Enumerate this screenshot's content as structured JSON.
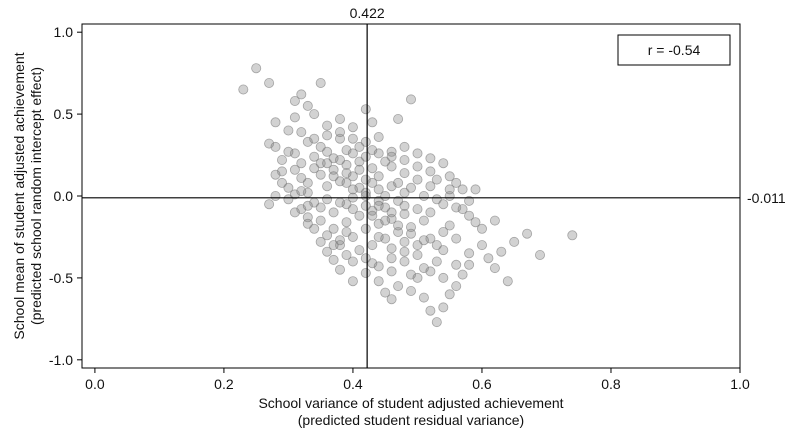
{
  "chart_data": {
    "type": "scatter",
    "xlabel_line1": "School variance of student adjusted achievement",
    "xlabel_line2": "(predicted student residual variance)",
    "ylabel_line1": "School mean of student adjusted achievement",
    "ylabel_line2": "(predicted school random intercept effect)",
    "xlim": [
      -0.02,
      1.0
    ],
    "ylim": [
      -1.05,
      1.05
    ],
    "xticks": [
      0.0,
      0.2,
      0.4,
      0.6,
      0.8,
      1.0
    ],
    "xtick_labels": [
      "0.0",
      "0.2",
      "0.4",
      "0.6",
      "0.8",
      "1.0"
    ],
    "yticks": [
      -1.0,
      -0.5,
      0.0,
      0.5,
      1.0
    ],
    "ytick_labels": [
      "-1.0",
      "-0.5",
      "0.0",
      "0.5",
      "1.0"
    ],
    "grid": false,
    "reference_lines": {
      "vertical": {
        "x": 0.422,
        "label": "0.422"
      },
      "horizontal": {
        "y": -0.011,
        "label": "-0.011"
      }
    },
    "annotation": "r = -0.54",
    "point_color": "#8a8a8a",
    "points": [
      [
        0.23,
        0.65
      ],
      [
        0.25,
        0.78
      ],
      [
        0.27,
        0.69
      ],
      [
        0.28,
        0.45
      ],
      [
        0.27,
        0.32
      ],
      [
        0.28,
        0.3
      ],
      [
        0.29,
        0.15
      ],
      [
        0.28,
        0.13
      ],
      [
        0.31,
        0.58
      ],
      [
        0.32,
        0.62
      ],
      [
        0.33,
        0.55
      ],
      [
        0.35,
        0.69
      ],
      [
        0.34,
        0.5
      ],
      [
        0.31,
        0.48
      ],
      [
        0.3,
        0.4
      ],
      [
        0.32,
        0.39
      ],
      [
        0.33,
        0.33
      ],
      [
        0.36,
        0.43
      ],
      [
        0.38,
        0.47
      ],
      [
        0.4,
        0.42
      ],
      [
        0.42,
        0.53
      ],
      [
        0.43,
        0.45
      ],
      [
        0.47,
        0.47
      ],
      [
        0.49,
        0.59
      ],
      [
        0.44,
        0.36
      ],
      [
        0.38,
        0.35
      ],
      [
        0.35,
        0.3
      ],
      [
        0.31,
        0.26
      ],
      [
        0.32,
        0.2
      ],
      [
        0.34,
        0.24
      ],
      [
        0.36,
        0.27
      ],
      [
        0.39,
        0.28
      ],
      [
        0.41,
        0.3
      ],
      [
        0.43,
        0.28
      ],
      [
        0.46,
        0.27
      ],
      [
        0.48,
        0.3
      ],
      [
        0.5,
        0.26
      ],
      [
        0.52,
        0.23
      ],
      [
        0.54,
        0.2
      ],
      [
        0.52,
        0.15
      ],
      [
        0.55,
        0.12
      ],
      [
        0.56,
        0.08
      ],
      [
        0.57,
        0.04
      ],
      [
        0.59,
        0.04
      ],
      [
        0.55,
        0.0
      ],
      [
        0.53,
        -0.02
      ],
      [
        0.58,
        -0.03
      ],
      [
        0.5,
        0.1
      ],
      [
        0.48,
        0.14
      ],
      [
        0.46,
        0.18
      ],
      [
        0.45,
        0.21
      ],
      [
        0.43,
        0.17
      ],
      [
        0.41,
        0.21
      ],
      [
        0.39,
        0.19
      ],
      [
        0.37,
        0.16
      ],
      [
        0.35,
        0.13
      ],
      [
        0.33,
        0.08
      ],
      [
        0.32,
        0.11
      ],
      [
        0.3,
        0.05
      ],
      [
        0.31,
        0.01
      ],
      [
        0.33,
        0.02
      ],
      [
        0.34,
        -0.04
      ],
      [
        0.32,
        -0.08
      ],
      [
        0.33,
        -0.13
      ],
      [
        0.35,
        -0.15
      ],
      [
        0.37,
        -0.1
      ],
      [
        0.39,
        -0.05
      ],
      [
        0.4,
        -0.01
      ],
      [
        0.42,
        0.02
      ],
      [
        0.44,
        0.04
      ],
      [
        0.46,
        0.06
      ],
      [
        0.48,
        0.02
      ],
      [
        0.47,
        -0.03
      ],
      [
        0.45,
        -0.07
      ],
      [
        0.43,
        -0.09
      ],
      [
        0.41,
        -0.12
      ],
      [
        0.39,
        -0.16
      ],
      [
        0.37,
        -0.2
      ],
      [
        0.36,
        -0.24
      ],
      [
        0.38,
        -0.27
      ],
      [
        0.4,
        -0.25
      ],
      [
        0.42,
        -0.2
      ],
      [
        0.44,
        -0.17
      ],
      [
        0.46,
        -0.14
      ],
      [
        0.48,
        -0.11
      ],
      [
        0.5,
        -0.08
      ],
      [
        0.52,
        -0.1
      ],
      [
        0.51,
        -0.15
      ],
      [
        0.49,
        -0.19
      ],
      [
        0.47,
        -0.22
      ],
      [
        0.45,
        -0.26
      ],
      [
        0.43,
        -0.3
      ],
      [
        0.41,
        -0.33
      ],
      [
        0.39,
        -0.36
      ],
      [
        0.37,
        -0.39
      ],
      [
        0.38,
        -0.45
      ],
      [
        0.4,
        -0.52
      ],
      [
        0.42,
        -0.47
      ],
      [
        0.44,
        -0.43
      ],
      [
        0.46,
        -0.38
      ],
      [
        0.48,
        -0.34
      ],
      [
        0.5,
        -0.3
      ],
      [
        0.52,
        -0.26
      ],
      [
        0.54,
        -0.22
      ],
      [
        0.55,
        -0.18
      ],
      [
        0.56,
        -0.26
      ],
      [
        0.54,
        -0.33
      ],
      [
        0.53,
        -0.4
      ],
      [
        0.51,
        -0.44
      ],
      [
        0.49,
        -0.48
      ],
      [
        0.47,
        -0.55
      ],
      [
        0.45,
        -0.59
      ],
      [
        0.46,
        -0.63
      ],
      [
        0.49,
        -0.58
      ],
      [
        0.51,
        -0.62
      ],
      [
        0.52,
        -0.7
      ],
      [
        0.53,
        -0.77
      ],
      [
        0.54,
        -0.68
      ],
      [
        0.55,
        -0.6
      ],
      [
        0.56,
        -0.55
      ],
      [
        0.57,
        -0.48
      ],
      [
        0.58,
        -0.42
      ],
      [
        0.6,
        -0.3
      ],
      [
        0.61,
        -0.38
      ],
      [
        0.62,
        -0.44
      ],
      [
        0.64,
        -0.52
      ],
      [
        0.63,
        -0.34
      ],
      [
        0.65,
        -0.28
      ],
      [
        0.67,
        -0.23
      ],
      [
        0.69,
        -0.36
      ],
      [
        0.74,
        -0.24
      ],
      [
        0.36,
        0.06
      ],
      [
        0.38,
        0.09
      ],
      [
        0.4,
        0.12
      ],
      [
        0.42,
        0.1
      ],
      [
        0.44,
        0.12
      ],
      [
        0.36,
        -0.02
      ],
      [
        0.38,
        -0.04
      ],
      [
        0.4,
        -0.08
      ],
      [
        0.42,
        -0.06
      ],
      [
        0.44,
        -0.03
      ],
      [
        0.35,
        0.2
      ],
      [
        0.37,
        0.23
      ],
      [
        0.39,
        0.08
      ],
      [
        0.41,
        0.05
      ],
      [
        0.43,
        -0.12
      ],
      [
        0.45,
        -0.15
      ],
      [
        0.47,
        -0.18
      ],
      [
        0.49,
        -0.23
      ],
      [
        0.51,
        -0.27
      ],
      [
        0.53,
        -0.3
      ],
      [
        0.34,
        0.35
      ],
      [
        0.36,
        0.37
      ],
      [
        0.38,
        0.39
      ],
      [
        0.4,
        0.35
      ],
      [
        0.42,
        0.33
      ],
      [
        0.3,
        0.27
      ],
      [
        0.29,
        0.22
      ],
      [
        0.31,
        0.16
      ],
      [
        0.32,
        0.03
      ],
      [
        0.33,
        -0.06
      ],
      [
        0.34,
        -0.2
      ],
      [
        0.35,
        -0.28
      ],
      [
        0.36,
        -0.34
      ],
      [
        0.38,
        -0.3
      ],
      [
        0.4,
        -0.4
      ],
      [
        0.42,
        -0.38
      ],
      [
        0.44,
        -0.25
      ],
      [
        0.46,
        -0.32
      ],
      [
        0.48,
        -0.28
      ],
      [
        0.5,
        -0.36
      ],
      [
        0.52,
        -0.46
      ],
      [
        0.54,
        -0.5
      ],
      [
        0.56,
        -0.42
      ],
      [
        0.58,
        -0.35
      ],
      [
        0.6,
        -0.2
      ],
      [
        0.62,
        -0.15
      ],
      [
        0.58,
        -0.12
      ],
      [
        0.56,
        -0.07
      ],
      [
        0.54,
        -0.05
      ],
      [
        0.52,
        0.06
      ],
      [
        0.5,
        0.18
      ],
      [
        0.48,
        0.22
      ],
      [
        0.46,
        0.24
      ],
      [
        0.44,
        0.26
      ],
      [
        0.42,
        0.24
      ],
      [
        0.4,
        0.26
      ],
      [
        0.38,
        0.22
      ],
      [
        0.36,
        0.2
      ],
      [
        0.34,
        0.17
      ],
      [
        0.37,
        0.12
      ],
      [
        0.39,
        0.14
      ],
      [
        0.41,
        0.16
      ],
      [
        0.43,
        0.08
      ],
      [
        0.45,
        0.0
      ],
      [
        0.47,
        0.08
      ],
      [
        0.49,
        0.05
      ],
      [
        0.51,
        0.0
      ],
      [
        0.53,
        0.1
      ],
      [
        0.55,
        0.04
      ],
      [
        0.57,
        -0.08
      ],
      [
        0.59,
        -0.16
      ],
      [
        0.46,
        -0.46
      ],
      [
        0.44,
        -0.52
      ],
      [
        0.48,
        -0.4
      ],
      [
        0.5,
        -0.5
      ],
      [
        0.43,
        -0.41
      ],
      [
        0.39,
        -0.22
      ],
      [
        0.37,
        -0.3
      ],
      [
        0.35,
        -0.07
      ],
      [
        0.33,
        -0.17
      ],
      [
        0.31,
        -0.1
      ],
      [
        0.3,
        -0.02
      ],
      [
        0.29,
        0.08
      ],
      [
        0.28,
        0.0
      ],
      [
        0.27,
        -0.05
      ],
      [
        0.4,
        0.04
      ],
      [
        0.42,
        0.0
      ],
      [
        0.44,
        -0.06
      ],
      [
        0.46,
        -0.1
      ],
      [
        0.48,
        -0.06
      ]
    ]
  }
}
